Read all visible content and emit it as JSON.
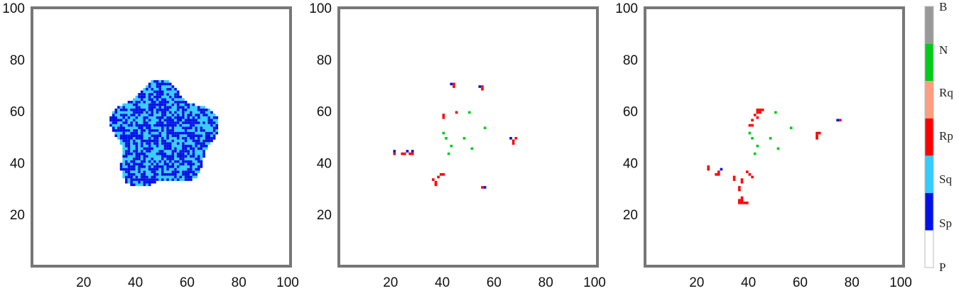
{
  "chart_data": [
    {
      "type": "heatmap",
      "panel": 1,
      "xlim": [
        0,
        100
      ],
      "ylim": [
        0,
        100
      ],
      "xticks": [
        20,
        40,
        60,
        80,
        100
      ],
      "yticks": [
        20,
        40,
        60,
        80,
        100
      ],
      "cells": [
        {
          "state": "Sp",
          "x": 51,
          "y": 51,
          "radius": 19.5
        },
        {
          "state": "Sq",
          "x": 51,
          "y": 51,
          "density": 0.45
        }
      ]
    },
    {
      "type": "heatmap",
      "panel": 2,
      "xlim": [
        0,
        100
      ],
      "ylim": [
        0,
        100
      ],
      "xticks": [
        20,
        40,
        60,
        80,
        100
      ],
      "yticks": [
        20,
        40,
        60,
        80,
        100
      ],
      "cells": [
        {
          "state": "Rp",
          "x": 45,
          "y": 71
        },
        {
          "state": "Rp",
          "x": 45,
          "y": 70
        },
        {
          "state": "Sp",
          "x": 44,
          "y": 71
        },
        {
          "state": "Rp",
          "x": 56,
          "y": 69
        },
        {
          "state": "Sp",
          "x": 55,
          "y": 70
        },
        {
          "state": "Rp",
          "x": 56,
          "y": 70
        },
        {
          "state": "Rp",
          "x": 46,
          "y": 60
        },
        {
          "state": "Rp",
          "x": 41,
          "y": 59
        },
        {
          "state": "Rp",
          "x": 41,
          "y": 58
        },
        {
          "state": "N",
          "x": 51,
          "y": 60
        },
        {
          "state": "N",
          "x": 57,
          "y": 54
        },
        {
          "state": "N",
          "x": 41,
          "y": 52
        },
        {
          "state": "N",
          "x": 42,
          "y": 50
        },
        {
          "state": "N",
          "x": 49,
          "y": 50
        },
        {
          "state": "N",
          "x": 44,
          "y": 47
        },
        {
          "state": "N",
          "x": 52,
          "y": 46
        },
        {
          "state": "N",
          "x": 43,
          "y": 44
        },
        {
          "state": "Rp",
          "x": 69,
          "y": 50
        },
        {
          "state": "Rp",
          "x": 68,
          "y": 49
        },
        {
          "state": "Rp",
          "x": 68,
          "y": 48
        },
        {
          "state": "Sp",
          "x": 67,
          "y": 50
        },
        {
          "state": "Sp",
          "x": 22,
          "y": 45
        },
        {
          "state": "Rp",
          "x": 22,
          "y": 44
        },
        {
          "state": "Rp",
          "x": 25,
          "y": 44
        },
        {
          "state": "Rp",
          "x": 26,
          "y": 44
        },
        {
          "state": "Sp",
          "x": 27,
          "y": 45
        },
        {
          "state": "Rp",
          "x": 28,
          "y": 44
        },
        {
          "state": "Sp",
          "x": 29,
          "y": 45
        },
        {
          "state": "Rp",
          "x": 29,
          "y": 44
        },
        {
          "state": "Rp",
          "x": 41,
          "y": 36
        },
        {
          "state": "Rp",
          "x": 40,
          "y": 36
        },
        {
          "state": "Rp",
          "x": 39,
          "y": 35
        },
        {
          "state": "Rp",
          "x": 37,
          "y": 34
        },
        {
          "state": "Rp",
          "x": 38,
          "y": 33
        },
        {
          "state": "Rp",
          "x": 38,
          "y": 32
        },
        {
          "state": "Sp",
          "x": 57,
          "y": 31
        },
        {
          "state": "Rp",
          "x": 56,
          "y": 31
        }
      ]
    },
    {
      "type": "heatmap",
      "panel": 3,
      "xlim": [
        0,
        100
      ],
      "ylim": [
        0,
        100
      ],
      "xticks": [
        20,
        40,
        60,
        80,
        100
      ],
      "yticks": [
        20,
        40,
        60,
        80,
        100
      ],
      "cells": [
        {
          "state": "Rp",
          "x": 44,
          "y": 61
        },
        {
          "state": "Rp",
          "x": 45,
          "y": 61
        },
        {
          "state": "Rp",
          "x": 46,
          "y": 61
        },
        {
          "state": "Rp",
          "x": 44,
          "y": 60
        },
        {
          "state": "Rp",
          "x": 45,
          "y": 60
        },
        {
          "state": "Rp",
          "x": 43,
          "y": 59
        },
        {
          "state": "Rp",
          "x": 44,
          "y": 58
        },
        {
          "state": "Rp",
          "x": 42,
          "y": 57
        },
        {
          "state": "Rp",
          "x": 41,
          "y": 55
        },
        {
          "state": "Rp",
          "x": 42,
          "y": 55
        },
        {
          "state": "N",
          "x": 51,
          "y": 60
        },
        {
          "state": "N",
          "x": 57,
          "y": 54
        },
        {
          "state": "N",
          "x": 41,
          "y": 52
        },
        {
          "state": "N",
          "x": 42,
          "y": 50
        },
        {
          "state": "N",
          "x": 49,
          "y": 50
        },
        {
          "state": "N",
          "x": 44,
          "y": 47
        },
        {
          "state": "N",
          "x": 52,
          "y": 46
        },
        {
          "state": "N",
          "x": 43,
          "y": 44
        },
        {
          "state": "Rp",
          "x": 67,
          "y": 52
        },
        {
          "state": "Rp",
          "x": 68,
          "y": 52
        },
        {
          "state": "Rp",
          "x": 67,
          "y": 51
        },
        {
          "state": "Rp",
          "x": 67,
          "y": 50
        },
        {
          "state": "Sp",
          "x": 75,
          "y": 57
        },
        {
          "state": "Rp",
          "x": 76,
          "y": 57
        },
        {
          "state": "Rp",
          "x": 25,
          "y": 39
        },
        {
          "state": "Rp",
          "x": 25,
          "y": 38
        },
        {
          "state": "Sp",
          "x": 30,
          "y": 38
        },
        {
          "state": "Rp",
          "x": 29,
          "y": 37
        },
        {
          "state": "Rp",
          "x": 28,
          "y": 36
        },
        {
          "state": "Rp",
          "x": 29,
          "y": 36
        },
        {
          "state": "Rp",
          "x": 40,
          "y": 37
        },
        {
          "state": "Rp",
          "x": 41,
          "y": 36
        },
        {
          "state": "Rp",
          "x": 42,
          "y": 35
        },
        {
          "state": "Rp",
          "x": 35,
          "y": 35
        },
        {
          "state": "Rp",
          "x": 35,
          "y": 34
        },
        {
          "state": "Rp",
          "x": 38,
          "y": 34
        },
        {
          "state": "Rp",
          "x": 38,
          "y": 33
        },
        {
          "state": "Rp",
          "x": 37,
          "y": 31
        },
        {
          "state": "Rp",
          "x": 37,
          "y": 30
        },
        {
          "state": "Rp",
          "x": 38,
          "y": 27
        },
        {
          "state": "Rp",
          "x": 37,
          "y": 26
        },
        {
          "state": "Rp",
          "x": 38,
          "y": 26
        },
        {
          "state": "Rp",
          "x": 37,
          "y": 25
        },
        {
          "state": "Rp",
          "x": 38,
          "y": 25
        },
        {
          "state": "Rp",
          "x": 39,
          "y": 25
        },
        {
          "state": "Rp",
          "x": 40,
          "y": 25
        }
      ]
    }
  ],
  "colorbar": {
    "labels": [
      "B",
      "N",
      "Rq",
      "Rp",
      "Sq",
      "Sp",
      "P"
    ],
    "colors": {
      "B": "#999999",
      "N": "#00cc1a",
      "Rq": "#ff9e80",
      "Rp": "#ff0000",
      "Sq": "#33ccff",
      "Sp": "#0010e6",
      "P": "#ffffff"
    }
  }
}
